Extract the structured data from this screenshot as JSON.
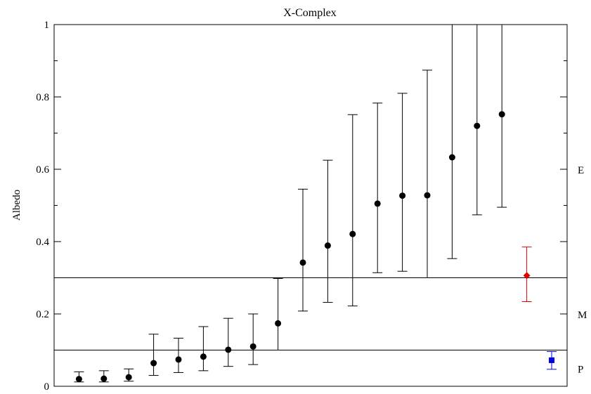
{
  "chart_data": {
    "type": "scatter",
    "title": "X-Complex",
    "xlabel": "",
    "ylabel": "Albedo",
    "ylim": [
      0,
      1
    ],
    "yticks": [
      "0",
      "0.2",
      "0.4",
      "0.6",
      "0.8",
      "1"
    ],
    "grid": false,
    "x": [
      1,
      2,
      3,
      4,
      5,
      6,
      7,
      8,
      9,
      10,
      11,
      12,
      13,
      14,
      15,
      16,
      17,
      18,
      19,
      20,
      21
    ],
    "series": [
      {
        "color": "#000000",
        "marker": "circle",
        "points": [
          {
            "x": 1,
            "y": 0.02,
            "lo": 0.012,
            "hi": 0.04
          },
          {
            "x": 2,
            "y": 0.021,
            "lo": 0.012,
            "hi": 0.043
          },
          {
            "x": 3,
            "y": 0.025,
            "lo": 0.014,
            "hi": 0.048
          },
          {
            "x": 4,
            "y": 0.064,
            "lo": 0.03,
            "hi": 0.144
          },
          {
            "x": 5,
            "y": 0.074,
            "lo": 0.038,
            "hi": 0.133
          },
          {
            "x": 6,
            "y": 0.082,
            "lo": 0.043,
            "hi": 0.165
          },
          {
            "x": 7,
            "y": 0.101,
            "lo": 0.055,
            "hi": 0.188
          },
          {
            "x": 8,
            "y": 0.11,
            "lo": 0.06,
            "hi": 0.2
          },
          {
            "x": 9,
            "y": 0.174,
            "lo": 0.1,
            "hi": 0.298
          },
          {
            "x": 10,
            "y": 0.342,
            "lo": 0.208,
            "hi": 0.545
          },
          {
            "x": 11,
            "y": 0.389,
            "lo": 0.232,
            "hi": 0.625
          },
          {
            "x": 12,
            "y": 0.421,
            "lo": 0.222,
            "hi": 0.751
          },
          {
            "x": 13,
            "y": 0.505,
            "lo": 0.314,
            "hi": 0.783
          },
          {
            "x": 14,
            "y": 0.527,
            "lo": 0.318,
            "hi": 0.81
          },
          {
            "x": 15,
            "y": 0.528,
            "lo": 0.3,
            "hi": 0.874
          },
          {
            "x": 16,
            "y": 0.633,
            "lo": 0.353,
            "hi": 1.0
          },
          {
            "x": 17,
            "y": 0.72,
            "lo": 0.474,
            "hi": 1.0
          },
          {
            "x": 18,
            "y": 0.752,
            "lo": 0.495,
            "hi": 1.0
          }
        ]
      },
      {
        "color": "#e00000",
        "marker": "diamond",
        "points": [
          {
            "x": 19,
            "y": 0.306,
            "lo": 0.234,
            "hi": 0.385
          }
        ]
      },
      {
        "color": "#0000e0",
        "marker": "square",
        "points": [
          {
            "x": 20,
            "y": 0.072,
            "lo": 0.047,
            "hi": 0.096
          }
        ]
      }
    ],
    "hlines": [
      0.3,
      0.1
    ],
    "class_labels": [
      {
        "label": "E",
        "y": 0.6
      },
      {
        "label": "M",
        "y": 0.2
      },
      {
        "label": "P",
        "y": 0.05
      }
    ],
    "xlim": [
      0,
      21.8
    ]
  }
}
